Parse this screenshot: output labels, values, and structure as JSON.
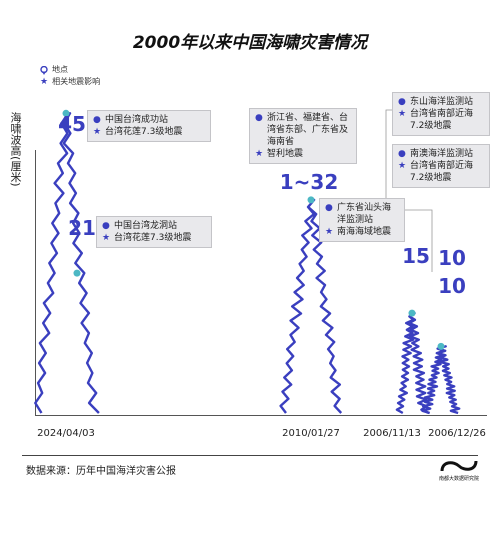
{
  "title": "2000年以来中国海啸灾害情况",
  "legend": {
    "location_label": "地点",
    "quake_label": "相关地震影响",
    "location_icon": "pin-icon",
    "quake_icon": "star-icon"
  },
  "ylabel": "海啸波高(厘米)",
  "source": "数据来源：历年中国海洋灾害公报",
  "brand": "南都大数据研究院",
  "colors": {
    "wave": "#3a3fbf",
    "marker": "#4cb8c4",
    "box_bg": "#e9e9ec"
  },
  "chart_data": {
    "type": "line",
    "ylabel": "海啸波高(厘米)",
    "title": "2000年以来中国海啸灾害情况",
    "ylim": [
      0,
      50
    ],
    "x_labels": [
      "2024/04/03",
      "2010/01/27",
      "2006/11/13",
      "2006/12/26"
    ],
    "events": [
      {
        "date": "2024/04/03",
        "height": 45,
        "peak_label": "45",
        "location": "中国台湾成功站",
        "quake": "台湾花莲7.3级地震"
      },
      {
        "date": "2024/04/03",
        "height": 21,
        "peak_label": "21",
        "location": "中国台湾龙洞站",
        "quake": "台湾花莲7.3级地震"
      },
      {
        "date": "2010/01/27",
        "height": 32,
        "peak_label": "1~32",
        "location": "浙江省、福建省、台湾省东部、广东省及海南省",
        "quake": "智利地震"
      },
      {
        "date": "2010/01/27",
        "height": null,
        "peak_label": "",
        "location": "广东省汕头海洋监测站",
        "quake": "南海海域地震"
      },
      {
        "date": "2006/11/13",
        "height": 15,
        "peak_label": "15",
        "location": "东山海洋监测站",
        "quake": "台湾省南部近海7.2级地震"
      },
      {
        "date": "2006/12/26",
        "height": 10,
        "peak_label": "10",
        "location": "南澳海洋监测站",
        "quake": "台湾省南部近海7.2级地震"
      },
      {
        "date": "2006/12/26",
        "height": 10,
        "peak_label": "10",
        "location": "",
        "quake": ""
      }
    ]
  }
}
